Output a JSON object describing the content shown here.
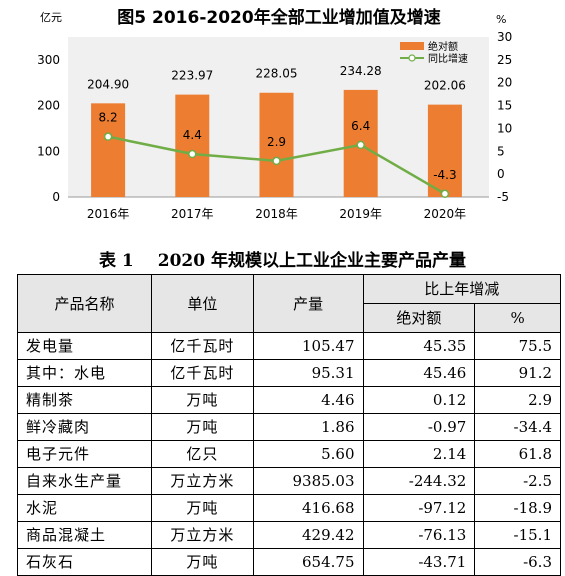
{
  "chart_data": {
    "type": "bar+line",
    "title": "图5  2016-2020年全部工业增加值及增速",
    "y_left_unit": "亿元",
    "y_right_unit": "%",
    "y_left_ticks": [
      "0",
      "100",
      "200",
      "300"
    ],
    "y_right_ticks": [
      "-5",
      "0",
      "5",
      "10",
      "15",
      "20",
      "25",
      "30"
    ],
    "ylim_left": [
      0,
      350
    ],
    "ylim_right": [
      -5,
      30
    ],
    "categories": [
      "2016年",
      "2017年",
      "2018年",
      "2019年",
      "2020年"
    ],
    "bar_series": {
      "name": "绝对额",
      "values": [
        204.9,
        223.97,
        228.05,
        234.28,
        202.06
      ],
      "labels": [
        "204.90",
        "223.97",
        "228.05",
        "234.28",
        "202.06"
      ],
      "color": "#ED7D31"
    },
    "line_series": {
      "name": "同比增速",
      "values": [
        8.2,
        4.4,
        2.9,
        6.4,
        -4.3
      ],
      "labels": [
        "8.2",
        "4.4",
        "2.9",
        "6.4",
        "-4.3"
      ],
      "color": "#70AD47"
    },
    "legend_position": "top-right",
    "grid": false
  },
  "table": {
    "title_num": "表 1",
    "title_text": "2020 年规模以上工业企业主要产品产量",
    "headers": {
      "name": "产品名称",
      "unit": "单位",
      "output": "产量",
      "change": "比上年增减",
      "abs": "绝对额",
      "pct": "%"
    },
    "rows": [
      {
        "name": "发电量",
        "unit": "亿千瓦时",
        "output": "105.47",
        "abs": "45.35",
        "pct": "75.5"
      },
      {
        "name": "其中：水电",
        "unit": "亿千瓦时",
        "output": "95.31",
        "abs": "45.46",
        "pct": "91.2"
      },
      {
        "name": "精制茶",
        "unit": "万吨",
        "output": "4.46",
        "abs": "0.12",
        "pct": "2.9"
      },
      {
        "name": "鲜冷藏肉",
        "unit": "万吨",
        "output": "1.86",
        "abs": "-0.97",
        "pct": "-34.4"
      },
      {
        "name": "电子元件",
        "unit": "亿只",
        "output": "5.60",
        "abs": "2.14",
        "pct": "61.8"
      },
      {
        "name": "自来水生产量",
        "unit": "万立方米",
        "output": "9385.03",
        "abs": "-244.32",
        "pct": "-2.5"
      },
      {
        "name": "水泥",
        "unit": "万吨",
        "output": "416.68",
        "abs": "-97.12",
        "pct": "-18.9"
      },
      {
        "name": "商品混凝土",
        "unit": "万立方米",
        "output": "429.42",
        "abs": "-76.13",
        "pct": "-15.1"
      },
      {
        "name": "石灰石",
        "unit": "万吨",
        "output": "654.75",
        "abs": "-43.71",
        "pct": "-6.3"
      }
    ]
  }
}
